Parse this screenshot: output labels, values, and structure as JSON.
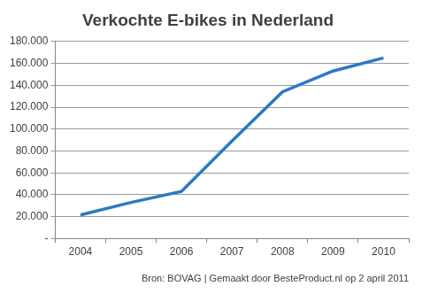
{
  "chart_data": {
    "type": "line",
    "title": "Verkochte E-bikes in Nederland",
    "annotations": [
      "Bron: BOVAG | Gemaakt door BesteProduct.nl op 2 april 2011"
    ],
    "categories": [
      "2004",
      "2005",
      "2006",
      "2007",
      "2008",
      "2009",
      "2010"
    ],
    "values": [
      21500,
      33000,
      43000,
      89000,
      134000,
      153000,
      165000
    ],
    "color": "#2e78c4",
    "marker": "none",
    "line_style": "solid",
    "ylim": [
      0,
      180000
    ],
    "yticks": [
      {
        "value": 0,
        "label": "-"
      },
      {
        "value": 20000,
        "label": "20.000"
      },
      {
        "value": 40000,
        "label": "40.000"
      },
      {
        "value": 60000,
        "label": "60.000"
      },
      {
        "value": 80000,
        "label": "80.000"
      },
      {
        "value": 100000,
        "label": "100.000"
      },
      {
        "value": 120000,
        "label": "120.000"
      },
      {
        "value": 140000,
        "label": "140.000"
      },
      {
        "value": 160000,
        "label": "160.000"
      },
      {
        "value": 180000,
        "label": "180.000"
      }
    ],
    "grid": true
  }
}
